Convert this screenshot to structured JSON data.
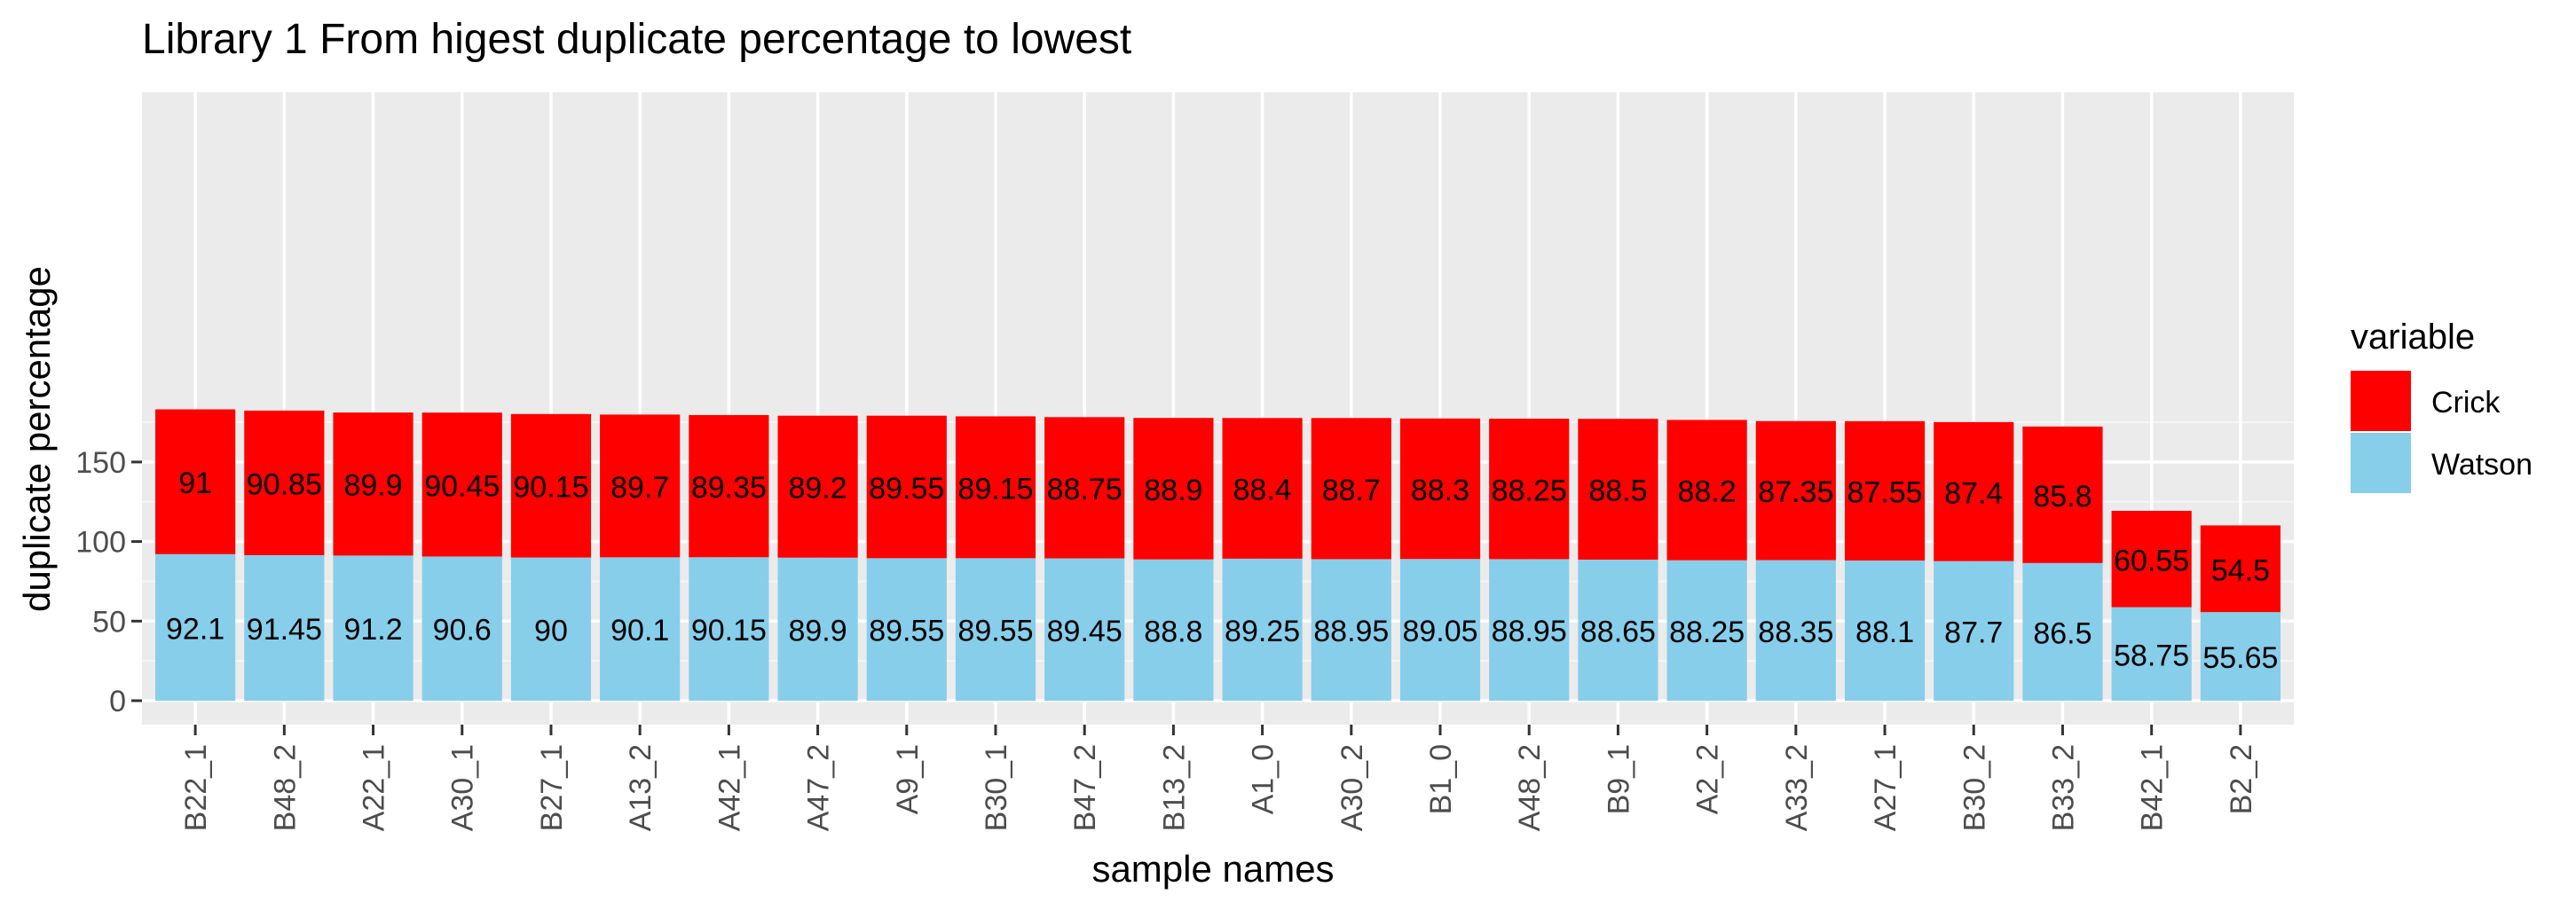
{
  "chart_data": {
    "type": "bar",
    "stacked": true,
    "title": "Library 1 From higest duplicate percentage to lowest",
    "xlabel": "sample names",
    "ylabel": "duplicate percentage",
    "ylim": [
      0,
      190
    ],
    "yticks": [
      0,
      50,
      100,
      150
    ],
    "grid": true,
    "legend_position": "right",
    "legend_title": "variable",
    "categories": [
      "B22_1",
      "B48_2",
      "A22_1",
      "A30_1",
      "B27_1",
      "A13_2",
      "A42_1",
      "A47_2",
      "A9_1",
      "B30_1",
      "B47_2",
      "B13_2",
      "A1_0",
      "A30_2",
      "B1_0",
      "A48_2",
      "B9_1",
      "A2_2",
      "A33_2",
      "A27_1",
      "B30_2",
      "B33_2",
      "B42_1",
      "B2_2"
    ],
    "series": [
      {
        "name": "Watson",
        "color": "#87CEEB",
        "values": [
          92.1,
          91.45,
          91.2,
          90.6,
          90,
          90.1,
          90.15,
          89.9,
          89.55,
          89.55,
          89.45,
          88.8,
          89.25,
          88.95,
          89.05,
          88.95,
          88.65,
          88.25,
          88.35,
          88.1,
          87.7,
          86.5,
          58.75,
          55.65
        ],
        "labels": [
          "92.1",
          "91.45",
          "91.2",
          "90.6",
          "90",
          "90.1",
          "90.15",
          "89.9",
          "89.55",
          "89.55",
          "89.45",
          "88.8",
          "89.25",
          "88.95",
          "89.05",
          "88.95",
          "88.65",
          "88.25",
          "88.35",
          "88.1",
          "87.7",
          "86.5",
          "58.75",
          "55.65"
        ]
      },
      {
        "name": "Crick",
        "color": "#FF0000",
        "values": [
          91,
          90.85,
          89.9,
          90.45,
          90.15,
          89.7,
          89.35,
          89.2,
          89.55,
          89.15,
          88.75,
          88.9,
          88.4,
          88.7,
          88.3,
          88.25,
          88.5,
          88.2,
          87.35,
          87.55,
          87.4,
          85.8,
          60.55,
          54.5
        ],
        "labels": [
          "91",
          "90.85",
          "89.9",
          "90.45",
          "90.15",
          "89.7",
          "89.35",
          "89.2",
          "89.55",
          "89.15",
          "88.75",
          "88.9",
          "88.4",
          "88.7",
          "88.3",
          "88.25",
          "88.5",
          "88.2",
          "87.35",
          "87.55",
          "87.4",
          "85.8",
          "60.55",
          "54.5"
        ]
      }
    ],
    "legend_order": [
      "Crick",
      "Watson"
    ],
    "colors": {
      "panel": "#EBEBEB",
      "grid_major": "#FFFFFF",
      "text": "#000000",
      "tick_text": "#4D4D4D"
    }
  }
}
